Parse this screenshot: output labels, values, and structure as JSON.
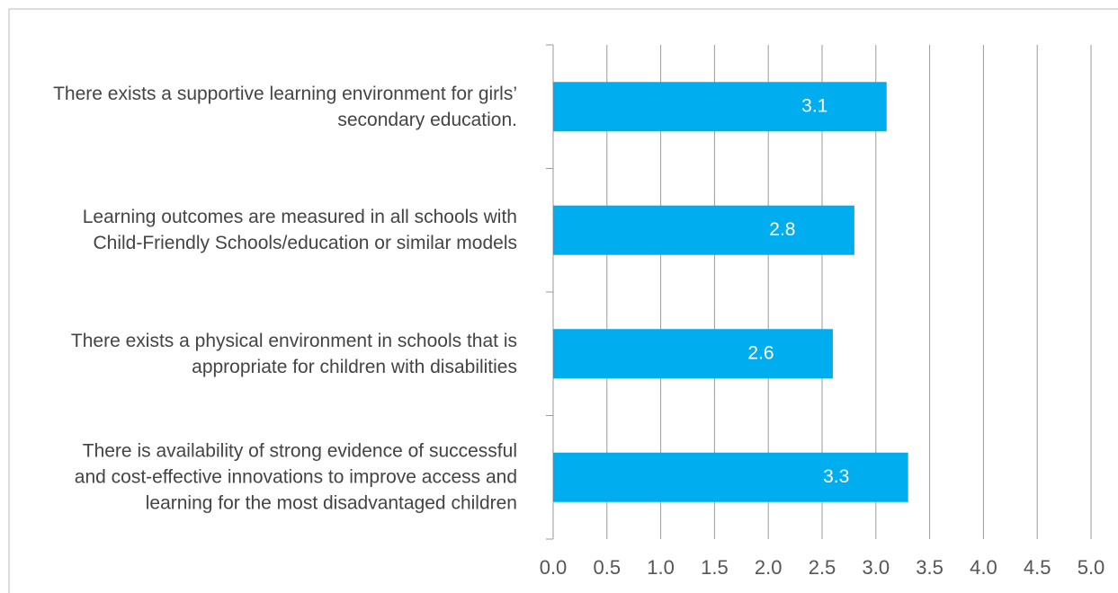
{
  "chart_data": {
    "type": "bar",
    "orientation": "horizontal",
    "categories": [
      "There exists a supportive learning environment for girls’ secondary education.",
      "Learning outcomes are measured in all schools with Child-Friendly Schools/education or similar models",
      "There exists a physical environment in schools that is appropriate for children with disabilities",
      "There is availability of strong evidence of successful and cost-effective innovations to improve access and learning for the most disadvantaged children"
    ],
    "values": [
      3.1,
      2.8,
      2.6,
      3.3
    ],
    "color": "#00aeef",
    "xlim": [
      0,
      5
    ],
    "xticks": [
      {
        "value": 0,
        "label": "0.0"
      },
      {
        "value": 0.5,
        "label": "0.5"
      },
      {
        "value": 1,
        "label": "1.0"
      },
      {
        "value": 1.5,
        "label": "1.5"
      },
      {
        "value": 2,
        "label": "2.0"
      },
      {
        "value": 2.5,
        "label": "2.5"
      },
      {
        "value": 3,
        "label": "3.0"
      },
      {
        "value": 3.5,
        "label": "3.5"
      },
      {
        "value": 4,
        "label": "4.0"
      },
      {
        "value": 4.5,
        "label": "4.5"
      },
      {
        "value": 5,
        "label": "5.0"
      }
    ],
    "grid": true
  }
}
